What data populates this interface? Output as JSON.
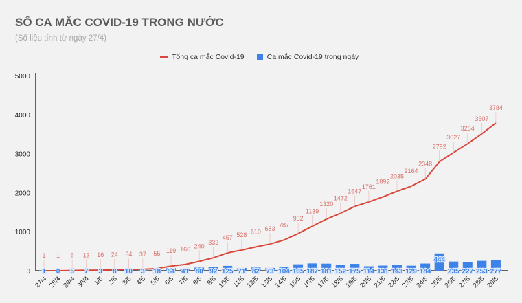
{
  "chart_data": {
    "type": "line+bar",
    "title": "SỐ CA MẮC COVID-19 TRONG NƯỚC",
    "subtitle": "(Số liệu tính từ ngày 27/4)",
    "categories": [
      "27/4",
      "28/4",
      "29/4",
      "30/4",
      "1/5",
      "2/5",
      "3/5",
      "4/5",
      "5/5",
      "6/5",
      "7/5",
      "8/5",
      "9/5",
      "10/5",
      "11/5",
      "12/5",
      "13/5",
      "14/5",
      "15/5",
      "16/5",
      "17/5",
      "18/5",
      "19/5",
      "20/5",
      "21/5",
      "22/5",
      "23/5",
      "24/5",
      "25/5",
      "26/5",
      "27/5",
      "28/5",
      "29/5"
    ],
    "series": [
      {
        "name": "Tổng ca mắc Covid-19",
        "type": "line",
        "color": "#d9463a",
        "values": [
          1,
          1,
          6,
          13,
          16,
          24,
          34,
          37,
          55,
          119,
          160,
          240,
          332,
          457,
          528,
          610,
          683,
          787,
          952,
          1139,
          1320,
          1472,
          1647,
          1761,
          1892,
          2035,
          2164,
          2348,
          2792,
          3027,
          3254,
          3507,
          3784
        ]
      },
      {
        "name": "Ca mắc Covid-19 trong ngày",
        "type": "bar",
        "color": "#3d82e8",
        "values": [
          1,
          0,
          5,
          7,
          3,
          8,
          10,
          3,
          18,
          64,
          41,
          80,
          92,
          125,
          71,
          82,
          73,
          104,
          165,
          187,
          181,
          152,
          175,
          114,
          131,
          143,
          129,
          184,
          444,
          235,
          227,
          253,
          277
        ]
      }
    ],
    "yticks": [
      "0",
      "1000",
      "2000",
      "3000",
      "4000",
      "5000"
    ],
    "ylim": [
      0,
      5000
    ],
    "grid": false,
    "legend": "top-center"
  }
}
